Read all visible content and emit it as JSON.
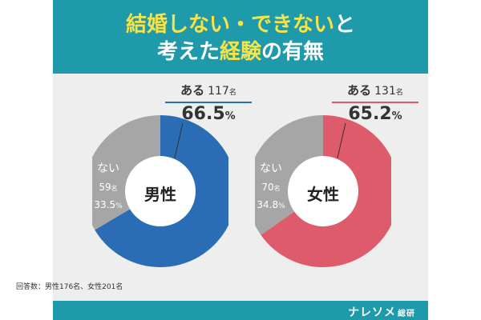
{
  "title": {
    "line1_part1": "結婚しない・できない",
    "line1_part2": "と",
    "line2_part1": "考えた",
    "line2_part2": "経験",
    "line2_part3": "の有無"
  },
  "footnote": "回答数：男性176名、女性201名",
  "brand": {
    "name": "ナレソメ",
    "sub": "総研"
  },
  "colors": {
    "teal": "#1f9aaa",
    "yellow": "#f4e44a",
    "male_yes": "#2a6db5",
    "female_yes": "#dd5b6b",
    "no": "#a6a6a6",
    "male_rule": "#2a6db5",
    "female_rule": "#dd5b6b"
  },
  "chart_data": [
    {
      "type": "pie",
      "center_label": "男性",
      "labels": [
        "ある",
        "ない"
      ],
      "counts": [
        117,
        59
      ],
      "count_unit": "名",
      "values": [
        66.5,
        33.5
      ],
      "value_labels": [
        "66.5",
        "33.5"
      ],
      "percent_unit": "%"
    },
    {
      "type": "pie",
      "center_label": "女性",
      "labels": [
        "ある",
        "ない"
      ],
      "counts": [
        131,
        70
      ],
      "count_unit": "名",
      "values": [
        65.2,
        34.8
      ],
      "value_labels": [
        "65.2",
        "34.8"
      ],
      "percent_unit": "%"
    }
  ]
}
